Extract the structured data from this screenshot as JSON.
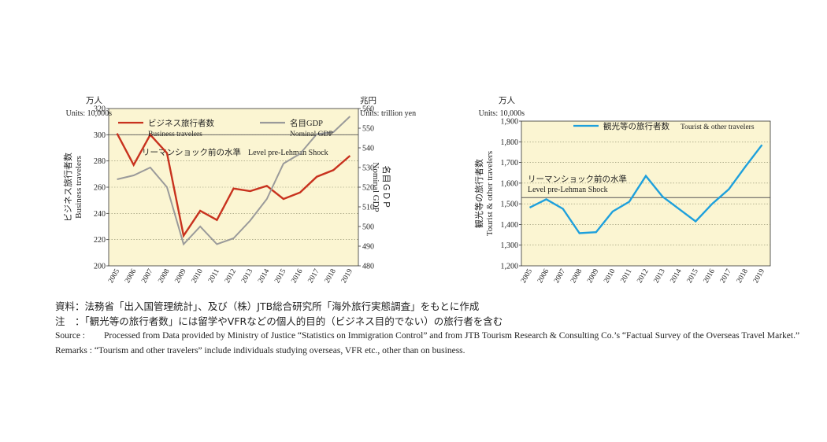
{
  "chart_data": [
    {
      "type": "line",
      "categories": [
        "2005",
        "2006",
        "2007",
        "2008",
        "2009",
        "2010",
        "2011",
        "2012",
        "2013",
        "2014",
        "2015",
        "2016",
        "2017",
        "2018",
        "2019"
      ],
      "y_left": {
        "unit_ja": "万人",
        "unit_en": "Units: 10,000s",
        "label_ja": "ビジネス旅行者数",
        "label_en": "Business travelers",
        "range": [
          200,
          320
        ],
        "ticks": [
          "200",
          "220",
          "240",
          "260",
          "280",
          "300",
          "320"
        ]
      },
      "y_right": {
        "unit_ja": "兆円",
        "unit_en": "Units: trillion yen",
        "label_ja": "名目ＧＤＰ",
        "label_en": "Nominal GDP",
        "range": [
          480,
          560
        ],
        "ticks": [
          "480",
          "490",
          "500",
          "510",
          "520",
          "530",
          "540",
          "550",
          "560"
        ]
      },
      "series": [
        {
          "name_ja": "ビジネス旅行者数",
          "name_en": "Business travelers",
          "axis": "left",
          "color": "#c8321e",
          "values": [
            301,
            277,
            300,
            286,
            223,
            242,
            235,
            259,
            257,
            261,
            251,
            256,
            268,
            273,
            284
          ]
        },
        {
          "name_ja": "名目GDP",
          "name_en": "Nominal GDP",
          "axis": "right",
          "color": "#9a9a9a",
          "values": [
            524,
            526,
            530,
            520,
            491,
            500,
            491,
            494,
            503,
            514,
            532,
            537,
            547,
            548,
            556
          ]
        }
      ],
      "reference": {
        "value": 300,
        "axis": "left",
        "label_ja": "リーマンショック前の水準",
        "label_en": "Level pre-Lehman Shock"
      },
      "grid": true
    },
    {
      "type": "line",
      "categories": [
        "2005",
        "2006",
        "2007",
        "2008",
        "2009",
        "2010",
        "2011",
        "2012",
        "2013",
        "2014",
        "2015",
        "2016",
        "2017",
        "2018",
        "2019"
      ],
      "y_left": {
        "unit_ja": "万人",
        "unit_en": "Units: 10,000s",
        "label_ja": "観光等の旅行者数",
        "label_en": "Tourist & other travelers",
        "range": [
          1200,
          1900
        ],
        "ticks": [
          "1,200",
          "1,300",
          "1,400",
          "1,500",
          "1,600",
          "1,700",
          "1,800",
          "1,900"
        ]
      },
      "series": [
        {
          "name_ja": "観光等の旅行者数",
          "name_en": "Tourist & other travelers",
          "axis": "left",
          "color": "#1ea0dc",
          "values": [
            1482,
            1522,
            1476,
            1358,
            1363,
            1463,
            1510,
            1635,
            1535,
            1475,
            1415,
            1500,
            1570,
            1680,
            1785
          ]
        }
      ],
      "reference": {
        "value": 1530,
        "axis": "left",
        "label_ja": "リーマンショック前の水準",
        "label_en": "Level pre-Lehman Shock"
      },
      "grid": true
    }
  ],
  "notes": {
    "source_ja_label": "資料：",
    "source_ja": "法務省「出入国管理統計」、及び（株）JTB総合研究所「海外旅行実態調査」をもとに作成",
    "remarks_ja_label": "注　：",
    "remarks_ja": "「観光等の旅行者数」には留学やVFRなどの個人的目的（ビジネス目的でない）の旅行者を含む",
    "source_en_label": "Source :",
    "source_en": "Processed from Data provided by Ministry of Justice “Statistics on Immigration Control” and from JTB Tourism Research & Consulting Co.’s “Factual Survey of the Overseas Travel Market.”",
    "remarks_en_label": "Remarks :",
    "remarks_en": "“Tourism and other travelers” include individuals studying overseas, VFR etc., other than on business."
  }
}
